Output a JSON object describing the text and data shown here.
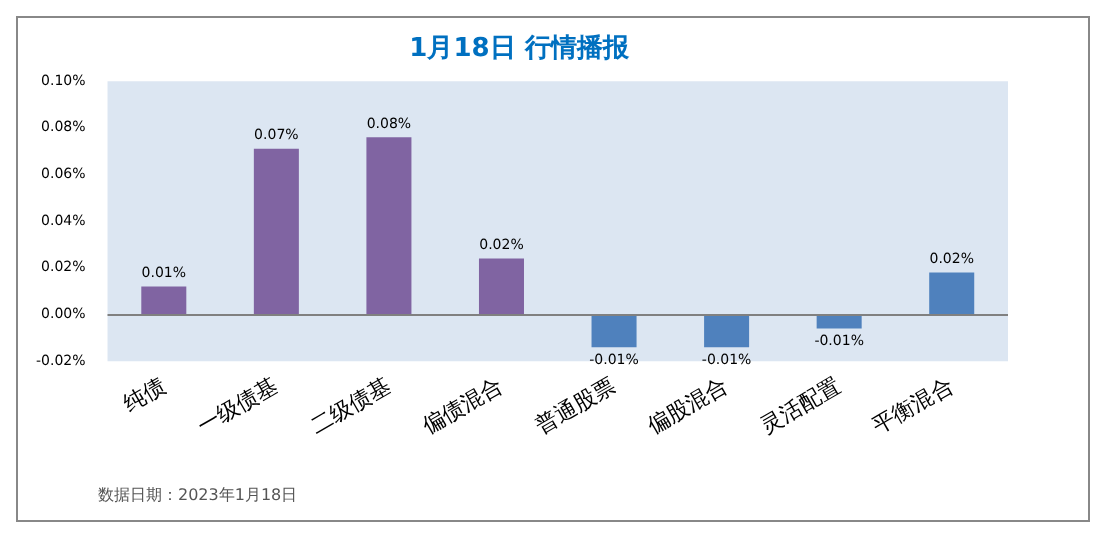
{
  "chart_data": {
    "type": "bar",
    "title": "1月18日 行情播报",
    "categories": [
      "纯债",
      "一级债基",
      "二级债基",
      "偏债混合",
      "普通股票",
      "偏股混合",
      "灵活配置",
      "平衡混合"
    ],
    "values": [
      0.012,
      0.071,
      0.076,
      0.024,
      -0.014,
      -0.014,
      -0.006,
      0.018
    ],
    "colors": [
      "#8064a2",
      "#8064a2",
      "#8064a2",
      "#8064a2",
      "#4f81bd",
      "#4f81bd",
      "#4f81bd",
      "#4f81bd"
    ],
    "value_labels": [
      "0.01%",
      "0.07%",
      "0.08%",
      "0.02%",
      "-0.01%",
      "-0.01%",
      "-0.01%",
      "0.02%"
    ],
    "ylim": [
      -0.02,
      0.1
    ],
    "yticks": [
      {
        "value": -0.02,
        "label": "-0.02%"
      },
      {
        "value": 0,
        "label": "0.00%"
      },
      {
        "value": 0.02,
        "label": "0.02%"
      },
      {
        "value": 0.04,
        "label": "0.04%"
      },
      {
        "value": 0.06,
        "label": "0.06%"
      },
      {
        "value": 0.08,
        "label": "0.08%"
      },
      {
        "value": 0.1,
        "label": "0.10%"
      }
    ],
    "annotations": [
      "数据日期：2023年1月18日"
    ],
    "ref_lines": [
      {
        "axis": "y",
        "value": 0,
        "color": "#808080"
      }
    ],
    "grid": false,
    "legend": false
  }
}
